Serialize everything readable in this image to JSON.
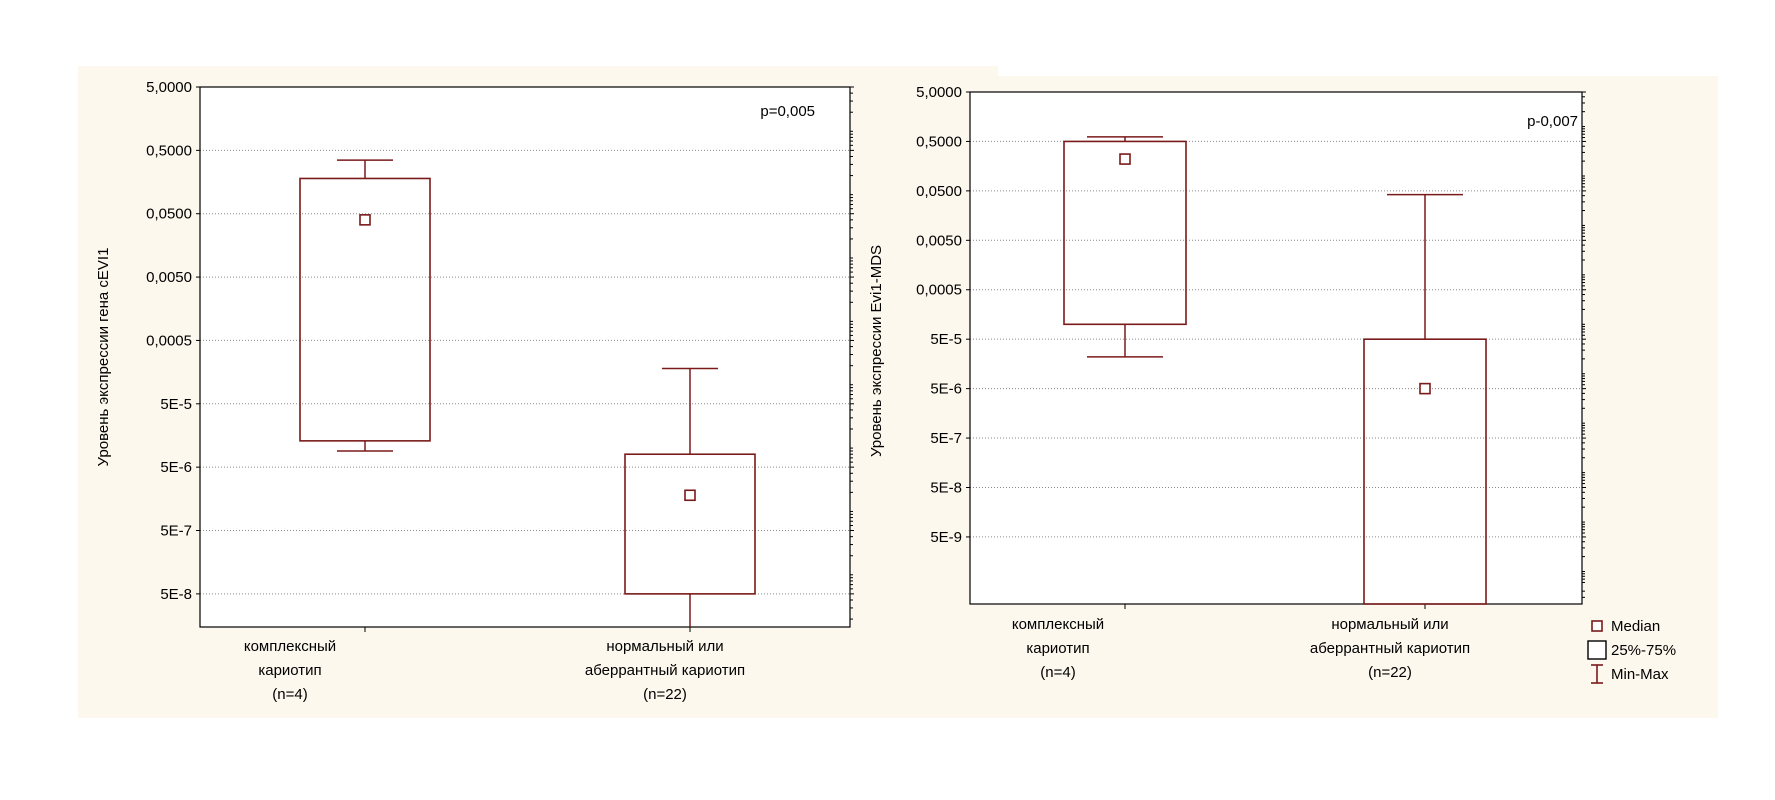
{
  "chart_data": [
    {
      "type": "box",
      "scale": "log",
      "ylabel": "Уровень экспрессии гена  cEVI1",
      "annotation": "p=0,005",
      "y_ticks": [
        {
          "value": 5,
          "label": "5,0000"
        },
        {
          "value": 0.5,
          "label": "0,5000"
        },
        {
          "value": 0.05,
          "label": "0,0500"
        },
        {
          "value": 0.005,
          "label": "0,0050"
        },
        {
          "value": 0.0005,
          "label": "0,0005"
        },
        {
          "value": 5e-05,
          "label": "5E-5"
        },
        {
          "value": 5e-06,
          "label": "5E-6"
        },
        {
          "value": 5e-07,
          "label": "5E-7"
        },
        {
          "value": 5e-08,
          "label": "5E-8"
        }
      ],
      "ylim": [
        1.5e-08,
        5
      ],
      "grid": true,
      "categories": [
        {
          "lines": [
            "комплексный",
            "кариотип",
            "(n=4)"
          ],
          "min": 9e-06,
          "q1": 1.3e-05,
          "median": 0.04,
          "q3": 0.18,
          "max": 0.35
        },
        {
          "lines": [
            "нормальный или",
            "аберрантный кариотип",
            "(n=22)"
          ],
          "min": 1.5e-08,
          "q1": 5e-08,
          "median": 1.8e-06,
          "q3": 8e-06,
          "max": 0.00018
        }
      ]
    },
    {
      "type": "box",
      "scale": "log",
      "ylabel": "Уровень экспрессии Evi1-MDS",
      "annotation": "p-0,007",
      "y_ticks": [
        {
          "value": 5,
          "label": "5,0000"
        },
        {
          "value": 0.5,
          "label": "0,5000"
        },
        {
          "value": 0.05,
          "label": "0,0500"
        },
        {
          "value": 0.005,
          "label": "0,0050"
        },
        {
          "value": 0.0005,
          "label": "0,0005"
        },
        {
          "value": 5e-05,
          "label": "5E-5"
        },
        {
          "value": 5e-06,
          "label": "5E-6"
        },
        {
          "value": 5e-07,
          "label": "5E-7"
        },
        {
          "value": 5e-08,
          "label": "5E-8"
        },
        {
          "value": 5e-09,
          "label": "5E-9"
        }
      ],
      "ylim": [
        2.2e-10,
        5
      ],
      "grid": true,
      "categories": [
        {
          "lines": [
            "комплексный",
            "кариотип",
            "(n=4)"
          ],
          "min": 2.2e-05,
          "q1": 0.0001,
          "median": 0.22,
          "q3": 0.5,
          "max": 0.62
        },
        {
          "lines": [
            "нормальный или",
            "аберрантный кариотип",
            "(n=22)"
          ],
          "min": 2.2e-10,
          "q1": 2.2e-10,
          "median": 5e-06,
          "q3": 5e-05,
          "max": 0.042
        }
      ]
    }
  ],
  "legend": {
    "placement": "right",
    "items": [
      {
        "symbol": "median",
        "label": "Median"
      },
      {
        "symbol": "box",
        "label": "25%-75%"
      },
      {
        "symbol": "whisker",
        "label": "Min-Max"
      }
    ]
  },
  "colors": {
    "box": "#7a1a1a",
    "background": "#fdf8ee",
    "plot_bg": "#ffffff",
    "grid": "#8a8a8a"
  }
}
